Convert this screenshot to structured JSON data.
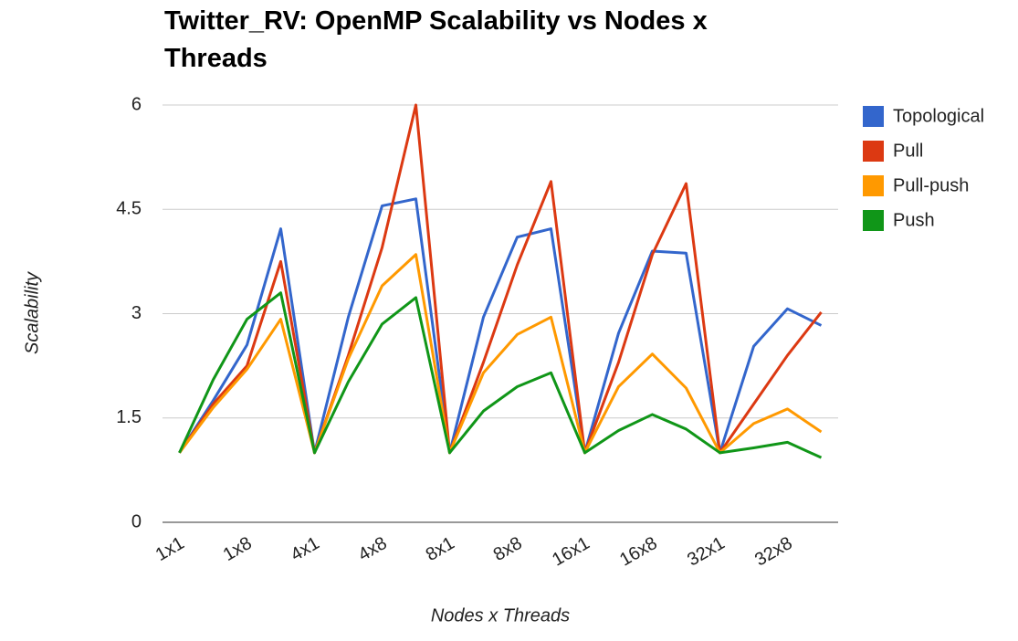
{
  "chart_data": {
    "type": "line",
    "title": "Twitter_RV: OpenMP Scalability vs Nodes x Threads",
    "x_label": "Nodes x Threads",
    "y_label": "Scalability",
    "categories": [
      "1x1",
      null,
      "1x8",
      null,
      "4x1",
      null,
      "4x8",
      null,
      "8x1",
      null,
      "8x8",
      null,
      "16x1",
      null,
      "16x8",
      null,
      "32x1",
      null,
      "32x8",
      null
    ],
    "series": [
      {
        "name": "Topological",
        "color": "#3366cc",
        "values": [
          1.0,
          1.75,
          2.55,
          4.22,
          1.0,
          2.95,
          4.55,
          4.65,
          1.0,
          2.95,
          4.1,
          4.22,
          1.0,
          2.72,
          3.9,
          3.87,
          1.0,
          2.53,
          3.07,
          2.83
        ]
      },
      {
        "name": "Pull",
        "color": "#dc3912",
        "values": [
          1.0,
          1.7,
          2.25,
          3.75,
          1.0,
          2.4,
          3.95,
          6.0,
          1.0,
          2.3,
          3.7,
          4.9,
          1.0,
          2.3,
          3.85,
          4.87,
          1.0,
          1.7,
          2.4,
          3.02
        ]
      },
      {
        "name": "Pull-push",
        "color": "#ff9900",
        "values": [
          1.0,
          1.65,
          2.2,
          2.92,
          1.0,
          2.35,
          3.4,
          3.85,
          1.0,
          2.15,
          2.7,
          2.95,
          1.0,
          1.95,
          2.42,
          1.93,
          1.0,
          1.42,
          1.63,
          1.3
        ]
      },
      {
        "name": "Push",
        "color": "#109618",
        "values": [
          1.0,
          2.05,
          2.92,
          3.3,
          1.0,
          2.02,
          2.85,
          3.23,
          1.0,
          1.6,
          1.95,
          2.15,
          1.0,
          1.32,
          1.55,
          1.34,
          1.0,
          1.07,
          1.15,
          0.93
        ]
      }
    ],
    "ylim": [
      0,
      6
    ],
    "yticks": [
      0,
      1.5,
      3,
      4.5,
      6
    ],
    "grid": true,
    "legend": "right"
  }
}
